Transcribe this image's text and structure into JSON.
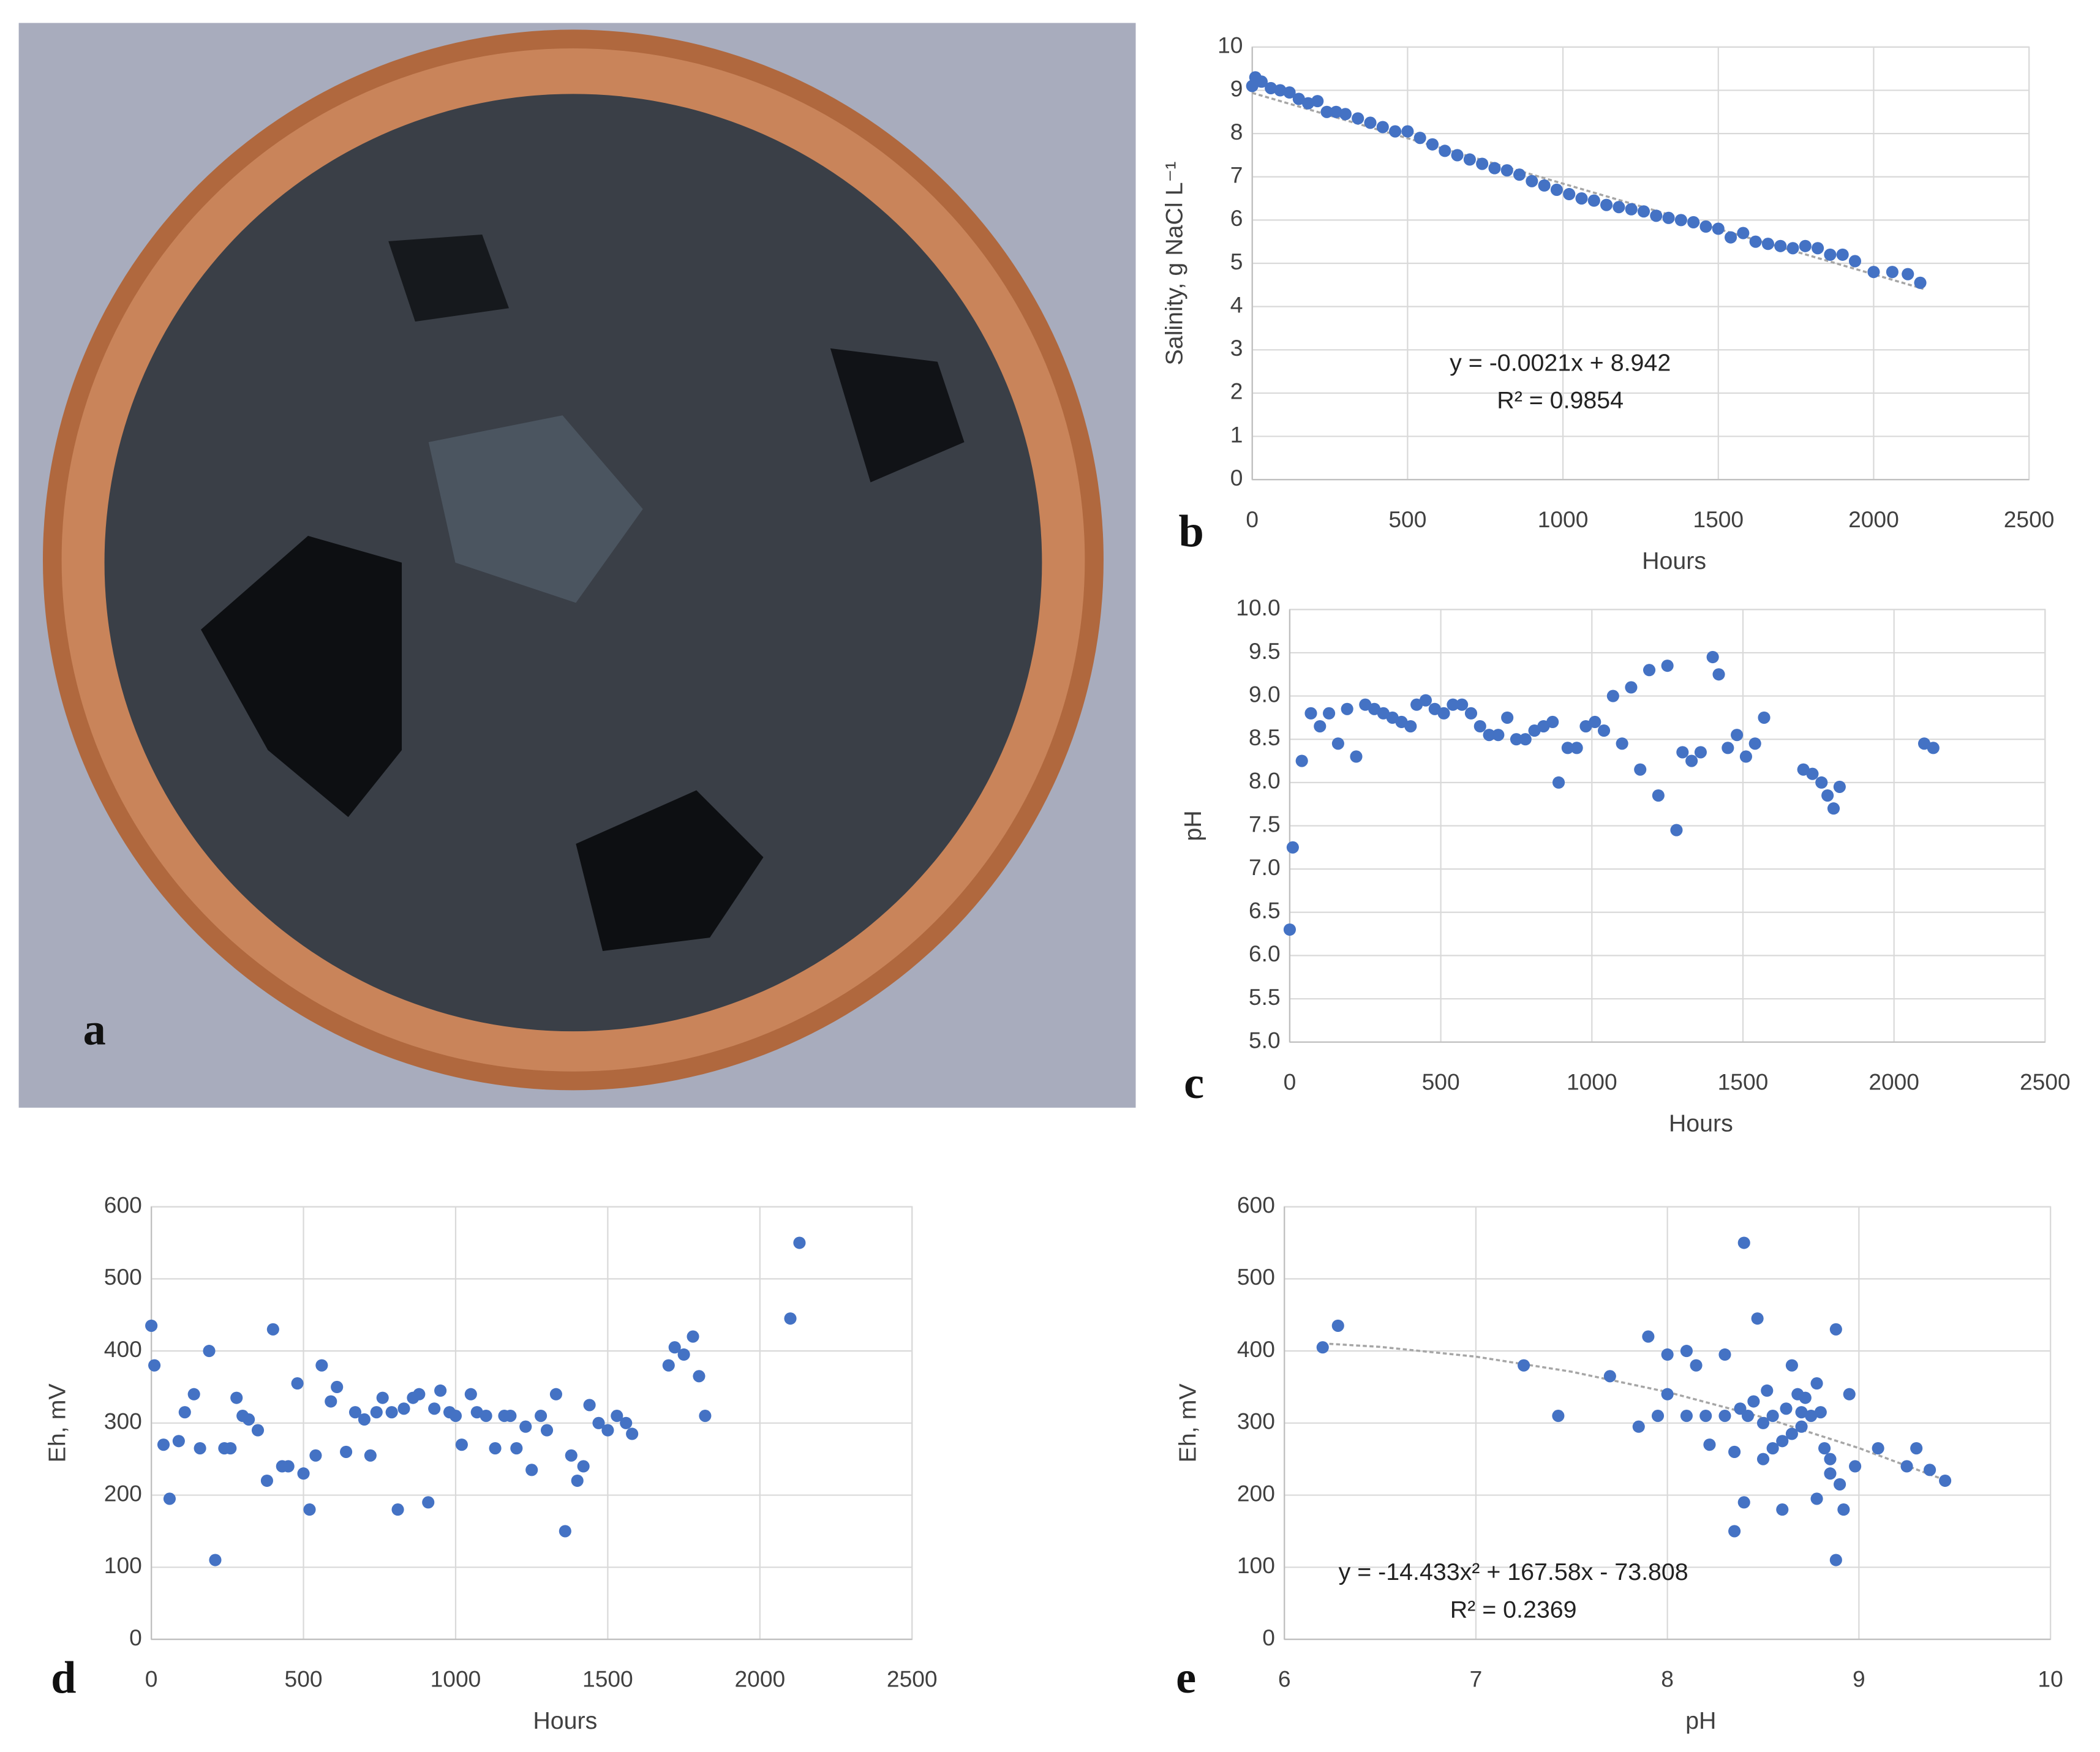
{
  "photo": {
    "label": "a"
  },
  "chart_data": [
    {
      "type": "scatter",
      "panel": "b",
      "x_label": "Hours",
      "y_label": "Salinity, g NaCl L⁻¹",
      "annotations": [
        "y = -0.0021x + 8.942",
        "R² = 0.9854"
      ],
      "xlim": [
        0,
        2500
      ],
      "xticks": [
        0,
        500,
        1000,
        1500,
        2000,
        2500
      ],
      "ylim": [
        0,
        10
      ],
      "yticks": [
        0,
        1,
        2,
        3,
        4,
        5,
        6,
        7,
        8,
        9,
        10
      ],
      "grid": true,
      "color": "#4472c4",
      "x": [
        0,
        10,
        30,
        60,
        90,
        120,
        150,
        180,
        210,
        240,
        270,
        300,
        340,
        380,
        420,
        460,
        500,
        540,
        580,
        620,
        660,
        700,
        740,
        780,
        820,
        860,
        900,
        940,
        980,
        1020,
        1060,
        1100,
        1140,
        1180,
        1220,
        1260,
        1300,
        1340,
        1380,
        1420,
        1460,
        1500,
        1540,
        1580,
        1620,
        1660,
        1700,
        1740,
        1780,
        1820,
        1860,
        1900,
        1940,
        2000,
        2060,
        2110,
        2150
      ],
      "values": [
        9.1,
        9.3,
        9.2,
        9.05,
        9.0,
        8.95,
        8.8,
        8.7,
        8.75,
        8.5,
        8.5,
        8.45,
        8.35,
        8.25,
        8.15,
        8.05,
        8.05,
        7.9,
        7.75,
        7.6,
        7.5,
        7.4,
        7.3,
        7.2,
        7.15,
        7.05,
        6.9,
        6.8,
        6.7,
        6.6,
        6.5,
        6.45,
        6.35,
        6.3,
        6.25,
        6.2,
        6.1,
        6.05,
        6.0,
        5.95,
        5.85,
        5.8,
        5.6,
        5.7,
        5.5,
        5.45,
        5.4,
        5.35,
        5.4,
        5.35,
        5.2,
        5.2,
        5.05,
        4.8,
        4.8,
        4.75,
        4.55
      ],
      "trendline": {
        "color": "#a6a6a6",
        "x": [
          0,
          2160
        ],
        "values": [
          8.94,
          4.41
        ]
      }
    },
    {
      "type": "scatter",
      "panel": "c",
      "x_label": "Hours",
      "y_label": "pH",
      "xlim": [
        0,
        2500
      ],
      "xticks": [
        0,
        500,
        1000,
        1500,
        2000,
        2500
      ],
      "ylim": [
        5,
        10
      ],
      "yticks": [
        {
          "value": 5,
          "label": "5.0"
        },
        {
          "value": 5.5,
          "label": "5.5"
        },
        {
          "value": 6,
          "label": "6.0"
        },
        {
          "value": 6.5,
          "label": "6.5"
        },
        {
          "value": 7,
          "label": "7.0"
        },
        {
          "value": 7.5,
          "label": "7.5"
        },
        {
          "value": 8,
          "label": "8.0"
        },
        {
          "value": 8.5,
          "label": "8.5"
        },
        {
          "value": 9,
          "label": "9.0"
        },
        {
          "value": 9.5,
          "label": "9.5"
        },
        {
          "value": 10,
          "label": "10.0"
        }
      ],
      "grid": true,
      "color": "#4472c4",
      "x": [
        0,
        10,
        40,
        70,
        100,
        130,
        160,
        190,
        220,
        250,
        280,
        310,
        340,
        370,
        400,
        420,
        450,
        480,
        510,
        540,
        570,
        600,
        630,
        660,
        690,
        720,
        750,
        780,
        810,
        840,
        870,
        890,
        920,
        950,
        980,
        1010,
        1040,
        1070,
        1100,
        1130,
        1160,
        1190,
        1220,
        1250,
        1280,
        1300,
        1330,
        1360,
        1400,
        1420,
        1450,
        1480,
        1510,
        1540,
        1570,
        1700,
        1730,
        1760,
        1780,
        1800,
        1820,
        2100,
        2130
      ],
      "values": [
        6.3,
        7.25,
        8.25,
        8.8,
        8.65,
        8.8,
        8.45,
        8.85,
        8.3,
        8.9,
        8.85,
        8.8,
        8.75,
        8.7,
        8.65,
        8.9,
        8.95,
        8.85,
        8.8,
        8.9,
        8.9,
        8.8,
        8.65,
        8.55,
        8.55,
        8.75,
        8.5,
        8.5,
        8.6,
        8.65,
        8.7,
        8.0,
        8.4,
        8.4,
        8.65,
        8.7,
        8.6,
        9.0,
        8.45,
        9.1,
        8.15,
        9.3,
        7.85,
        9.35,
        7.45,
        8.35,
        8.25,
        8.35,
        9.45,
        9.25,
        8.4,
        8.55,
        8.3,
        8.45,
        8.75,
        8.15,
        8.1,
        8.0,
        7.85,
        7.7,
        7.95,
        8.45,
        8.4
      ]
    },
    {
      "type": "scatter",
      "panel": "d",
      "x_label": "Hours",
      "y_label": "Eh, mV",
      "xlim": [
        0,
        2500
      ],
      "xticks": [
        0,
        500,
        1000,
        1500,
        2000,
        2500
      ],
      "ylim": [
        0,
        600
      ],
      "yticks": [
        0,
        100,
        200,
        300,
        400,
        500,
        600
      ],
      "grid": true,
      "color": "#4472c4",
      "x": [
        0,
        10,
        40,
        60,
        90,
        110,
        140,
        160,
        190,
        210,
        240,
        260,
        280,
        300,
        320,
        350,
        380,
        400,
        430,
        450,
        480,
        500,
        520,
        540,
        560,
        590,
        610,
        640,
        670,
        700,
        720,
        740,
        760,
        790,
        810,
        830,
        860,
        880,
        910,
        930,
        950,
        980,
        1000,
        1020,
        1050,
        1070,
        1100,
        1130,
        1160,
        1180,
        1200,
        1230,
        1250,
        1280,
        1300,
        1330,
        1360,
        1380,
        1400,
        1420,
        1440,
        1470,
        1500,
        1530,
        1560,
        1580,
        1700,
        1720,
        1750,
        1780,
        1800,
        1820,
        2100,
        2130
      ],
      "values": [
        435,
        380,
        270,
        195,
        275,
        315,
        340,
        265,
        400,
        110,
        265,
        265,
        335,
        310,
        305,
        290,
        220,
        430,
        240,
        240,
        355,
        230,
        180,
        255,
        380,
        330,
        350,
        260,
        315,
        305,
        255,
        315,
        335,
        315,
        180,
        320,
        335,
        340,
        190,
        320,
        345,
        315,
        310,
        270,
        340,
        315,
        310,
        265,
        310,
        310,
        265,
        295,
        235,
        310,
        290,
        340,
        150,
        255,
        220,
        240,
        325,
        300,
        290,
        310,
        300,
        285,
        380,
        405,
        395,
        420,
        365,
        310,
        445,
        550
      ]
    },
    {
      "type": "scatter",
      "panel": "e",
      "x_label": "pH",
      "y_label": "Eh, mV",
      "annotations": [
        "y = -14.433x² + 167.58x - 73.808",
        "R² = 0.2369"
      ],
      "xlim": [
        6,
        10
      ],
      "xticks": [
        6,
        7,
        8,
        9,
        10
      ],
      "ylim": [
        0,
        600
      ],
      "yticks": [
        0,
        100,
        200,
        300,
        400,
        500,
        600
      ],
      "grid": true,
      "color": "#4472c4",
      "x": [
        6.2,
        6.28,
        7.25,
        7.43,
        7.7,
        7.85,
        7.9,
        7.95,
        8.0,
        8.0,
        8.1,
        8.1,
        8.15,
        8.2,
        8.22,
        8.3,
        8.3,
        8.35,
        8.35,
        8.38,
        8.4,
        8.4,
        8.42,
        8.45,
        8.47,
        8.5,
        8.5,
        8.52,
        8.55,
        8.55,
        8.6,
        8.6,
        8.62,
        8.65,
        8.65,
        8.68,
        8.7,
        8.7,
        8.72,
        8.75,
        8.78,
        8.78,
        8.8,
        8.82,
        8.85,
        8.85,
        8.88,
        8.88,
        8.9,
        8.92,
        8.95,
        8.98,
        9.1,
        9.25,
        9.3,
        9.37,
        9.45
      ],
      "values": [
        405,
        435,
        380,
        310,
        365,
        295,
        420,
        310,
        340,
        395,
        400,
        310,
        380,
        310,
        270,
        310,
        395,
        260,
        150,
        320,
        550,
        190,
        310,
        330,
        445,
        300,
        250,
        345,
        265,
        310,
        180,
        275,
        320,
        380,
        285,
        340,
        315,
        295,
        335,
        310,
        355,
        195,
        315,
        265,
        230,
        250,
        430,
        110,
        215,
        180,
        340,
        240,
        265,
        240,
        265,
        235,
        220
      ],
      "trendline": {
        "color": "#a6a6a6",
        "x": [
          6.2,
          6.5,
          7,
          7.5,
          8,
          8.5,
          9,
          9.45
        ],
        "values": [
          410.4,
          405.7,
          392.1,
          371.2,
          343.1,
          307.8,
          265.3,
          220.9
        ]
      }
    }
  ]
}
